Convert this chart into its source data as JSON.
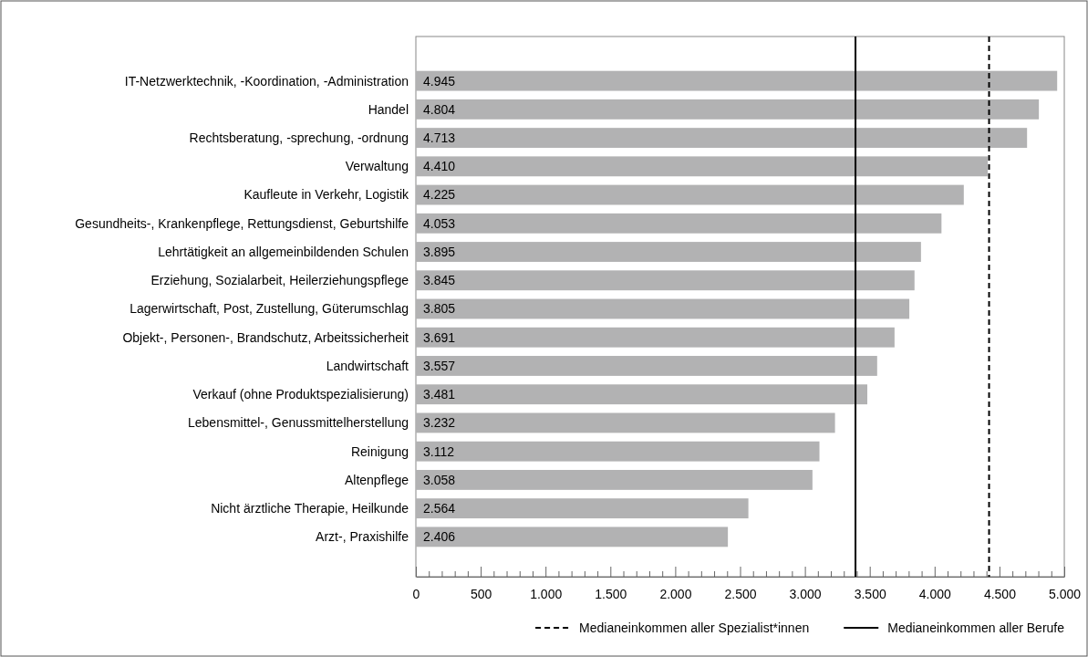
{
  "chart_data": {
    "type": "bar",
    "orientation": "horizontal",
    "categories": [
      "IT-Netzwerktechnik, -Koordination, -Administration",
      "Handel",
      "Rechtsberatung, -sprechung, -ordnung",
      "Verwaltung",
      "Kaufleute in Verkehr, Logistik",
      "Gesundheits-, Krankenpflege, Rettungsdienst, Geburtshilfe",
      "Lehrtätigkeit an allgemeinbildenden Schulen",
      "Erziehung, Sozialarbeit, Heilerziehungspflege",
      "Lagerwirtschaft, Post, Zustellung, Güterumschlag",
      "Objekt-, Personen-, Brandschutz, Arbeitssicherheit",
      "Landwirtschaft",
      "Verkauf (ohne Produktspezialisierung)",
      "Lebensmittel-, Genussmittelherstellung",
      "Reinigung",
      "Altenpflege",
      "Nicht ärztliche Therapie, Heilkunde",
      "Arzt-, Praxishilfe"
    ],
    "values": [
      4945,
      4804,
      4713,
      4410,
      4225,
      4053,
      3895,
      3845,
      3805,
      3691,
      3557,
      3481,
      3232,
      3112,
      3058,
      2564,
      2406
    ],
    "value_labels": [
      "4.945",
      "4.804",
      "4.713",
      "4.410",
      "4.225",
      "4.053",
      "3.895",
      "3.845",
      "3.805",
      "3.691",
      "3.557",
      "3.481",
      "3.232",
      "3.112",
      "3.058",
      "2.564",
      "2.406"
    ],
    "color": "#b2b2b3",
    "xlim": [
      0,
      5000
    ],
    "xticks": [
      0,
      {
        "value": 100,
        "label": null
      },
      {
        "value": 200,
        "label": null
      },
      {
        "value": 300,
        "label": null
      },
      {
        "value": 400,
        "label": null
      },
      500,
      {
        "value": 600,
        "label": null
      },
      {
        "value": 700,
        "label": null
      },
      {
        "value": 800,
        "label": null
      },
      {
        "value": 900,
        "label": null
      },
      {
        "value": 1000,
        "label": "1.000"
      },
      {
        "value": 1100,
        "label": null
      },
      {
        "value": 1200,
        "label": null
      },
      {
        "value": 1300,
        "label": null
      },
      {
        "value": 1400,
        "label": null
      },
      {
        "value": 1500,
        "label": "1.500"
      },
      {
        "value": 1600,
        "label": null
      },
      {
        "value": 1700,
        "label": null
      },
      {
        "value": 1800,
        "label": null
      },
      {
        "value": 1900,
        "label": null
      },
      {
        "value": 2000,
        "label": "2.000"
      },
      {
        "value": 2100,
        "label": null
      },
      {
        "value": 2200,
        "label": null
      },
      {
        "value": 2300,
        "label": null
      },
      {
        "value": 2400,
        "label": null
      },
      {
        "value": 2500,
        "label": "2.500"
      },
      {
        "value": 2600,
        "label": null
      },
      {
        "value": 2700,
        "label": null
      },
      {
        "value": 2800,
        "label": null
      },
      {
        "value": 2900,
        "label": null
      },
      {
        "value": 3000,
        "label": "3.000"
      },
      {
        "value": 3100,
        "label": null
      },
      {
        "value": 3200,
        "label": null
      },
      {
        "value": 3300,
        "label": null
      },
      {
        "value": 3400,
        "label": null
      },
      {
        "value": 3500,
        "label": "3.500"
      },
      {
        "value": 3600,
        "label": null
      },
      {
        "value": 3700,
        "label": null
      },
      {
        "value": 3800,
        "label": null
      },
      {
        "value": 3900,
        "label": null
      },
      {
        "value": 4000,
        "label": "4.000"
      },
      {
        "value": 4100,
        "label": null
      },
      {
        "value": 4200,
        "label": null
      },
      {
        "value": 4300,
        "label": null
      },
      {
        "value": 4400,
        "label": null
      },
      {
        "value": 4500,
        "label": "4.500"
      },
      {
        "value": 4600,
        "label": null
      },
      {
        "value": 4700,
        "label": null
      },
      {
        "value": 4800,
        "label": null
      },
      {
        "value": 4900,
        "label": null
      },
      {
        "value": 5000,
        "label": "5.000"
      }
    ],
    "ref_lines": [
      {
        "axis": "x",
        "value": 4420,
        "label": "Medianeinkommen aller Spezialist*innen",
        "line_style": "dashed",
        "color": "#000000"
      },
      {
        "axis": "x",
        "value": 3390,
        "label": "Medianeinkommen aller Berufe",
        "line_style": "solid",
        "color": "#000000"
      }
    ],
    "legend": "bottom"
  }
}
